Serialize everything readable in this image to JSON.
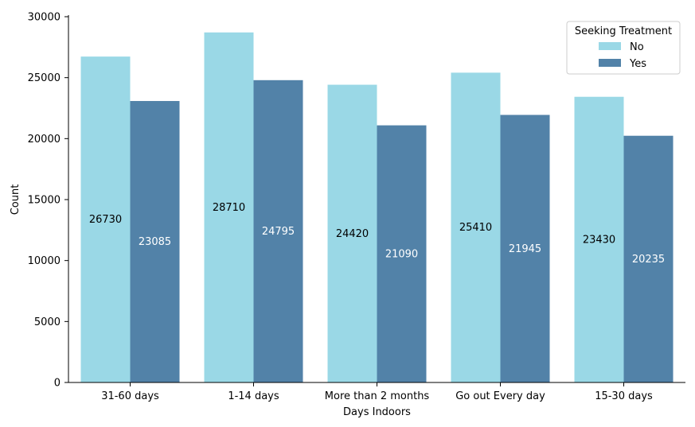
{
  "chart_data": {
    "type": "bar",
    "title": "",
    "xlabel": "Days Indoors",
    "ylabel": "Count",
    "ylim": [
      0,
      30000
    ],
    "yticks": [
      0,
      5000,
      10000,
      15000,
      20000,
      25000,
      30000
    ],
    "grid": false,
    "categories": [
      "31-60 days",
      "1-14 days",
      "More than 2 months",
      "Go out Every day",
      "15-30 days"
    ],
    "series": [
      {
        "name": "No",
        "color": "#9ad8e6",
        "label_color": "#000000",
        "values": [
          26730,
          28710,
          24420,
          25410,
          23430
        ]
      },
      {
        "name": "Yes",
        "color": "#5282a8",
        "label_color": "#ffffff",
        "values": [
          23085,
          24795,
          21090,
          21945,
          20235
        ]
      }
    ],
    "legend": {
      "title": "Seeking Treatment",
      "position": "top-right"
    }
  }
}
